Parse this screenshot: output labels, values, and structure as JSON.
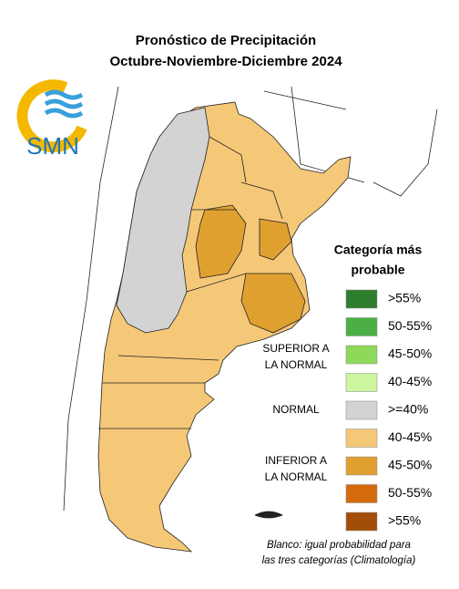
{
  "title": {
    "line1": "Pronóstico de Precipitación",
    "line2": "Octubre-Noviembre-Diciembre 2024"
  },
  "logo": {
    "text": "SMN"
  },
  "legend": {
    "title": [
      "Categoría más",
      "probable"
    ],
    "items": [
      {
        "label": ">55%",
        "color": "#2e7d2e"
      },
      {
        "label": "50-55%",
        "color": "#4caf45"
      },
      {
        "label": "45-50%",
        "color": "#8fd95a"
      },
      {
        "label": "40-45%",
        "color": "#ccf5a0"
      },
      {
        "label": ">=40%",
        "color": "#d3d3d3"
      },
      {
        "label": "40-45%",
        "color": "#f5c878"
      },
      {
        "label": "45-50%",
        "color": "#e0a030"
      },
      {
        "label": "50-55%",
        "color": "#d46a0a"
      },
      {
        "label": ">55%",
        "color": "#a34e08"
      }
    ],
    "groups": [
      {
        "lines": [
          "SUPERIOR A",
          "LA NORMAL"
        ]
      },
      {
        "lines": [
          "NORMAL"
        ]
      },
      {
        "lines": [
          "INFERIOR A",
          "LA NORMAL"
        ]
      }
    ]
  },
  "note": [
    "Blanco: igual probabilidad para",
    "las tres categorías (Climatología)"
  ]
}
